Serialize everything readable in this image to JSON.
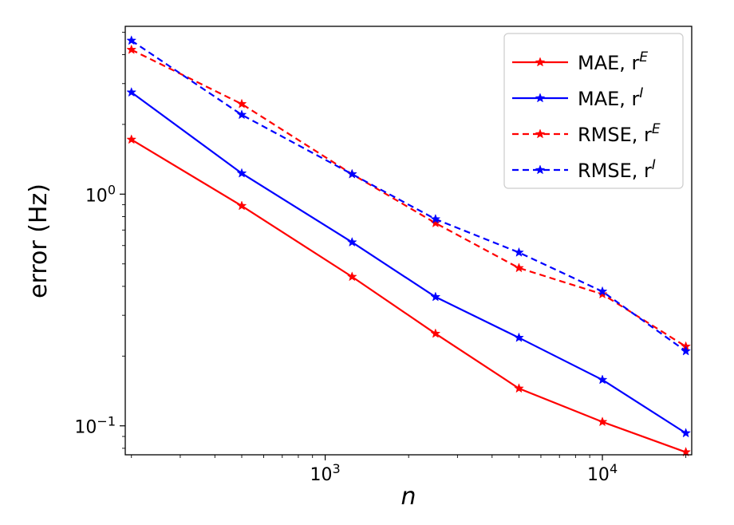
{
  "chart_data": {
    "type": "line",
    "xscale": "log",
    "yscale": "log",
    "xlabel": "n",
    "ylabel": "error (Hz)",
    "xlim": [
      190,
      21000
    ],
    "ylim": [
      0.075,
      5.3
    ],
    "x": [
      200,
      500,
      1250,
      2500,
      5000,
      10000,
      20000
    ],
    "x_ticks": [
      {
        "value": 1000,
        "base": "10",
        "exp": "3"
      },
      {
        "value": 10000,
        "base": "10",
        "exp": "4"
      }
    ],
    "y_ticks": [
      {
        "value": 1,
        "base": "10",
        "exp": "0"
      },
      {
        "value": 0.1,
        "base": "10",
        "exp": "−1"
      }
    ],
    "grid": false,
    "legend_position": "top-right",
    "series": [
      {
        "name": "MAE, r^E",
        "label_main": "MAE, r",
        "label_sup": "E",
        "color": "#ff0000",
        "dash": "solid",
        "values": [
          1.72,
          0.89,
          0.44,
          0.25,
          0.145,
          0.104,
          0.077
        ]
      },
      {
        "name": "MAE, r^I",
        "label_main": "MAE, r",
        "label_sup": "I",
        "color": "#0000ff",
        "dash": "solid",
        "values": [
          2.75,
          1.23,
          0.62,
          0.36,
          0.24,
          0.158,
          0.093
        ]
      },
      {
        "name": "RMSE, r^E",
        "label_main": "RMSE, r",
        "label_sup": "E",
        "color": "#ff0000",
        "dash": "dashed",
        "values": [
          4.2,
          2.45,
          1.22,
          0.75,
          0.48,
          0.37,
          0.22
        ]
      },
      {
        "name": "RMSE, r^I",
        "label_main": "RMSE, r",
        "label_sup": "I",
        "color": "#0000ff",
        "dash": "dashed",
        "values": [
          4.6,
          2.2,
          1.22,
          0.78,
          0.56,
          0.38,
          0.21
        ]
      }
    ]
  }
}
